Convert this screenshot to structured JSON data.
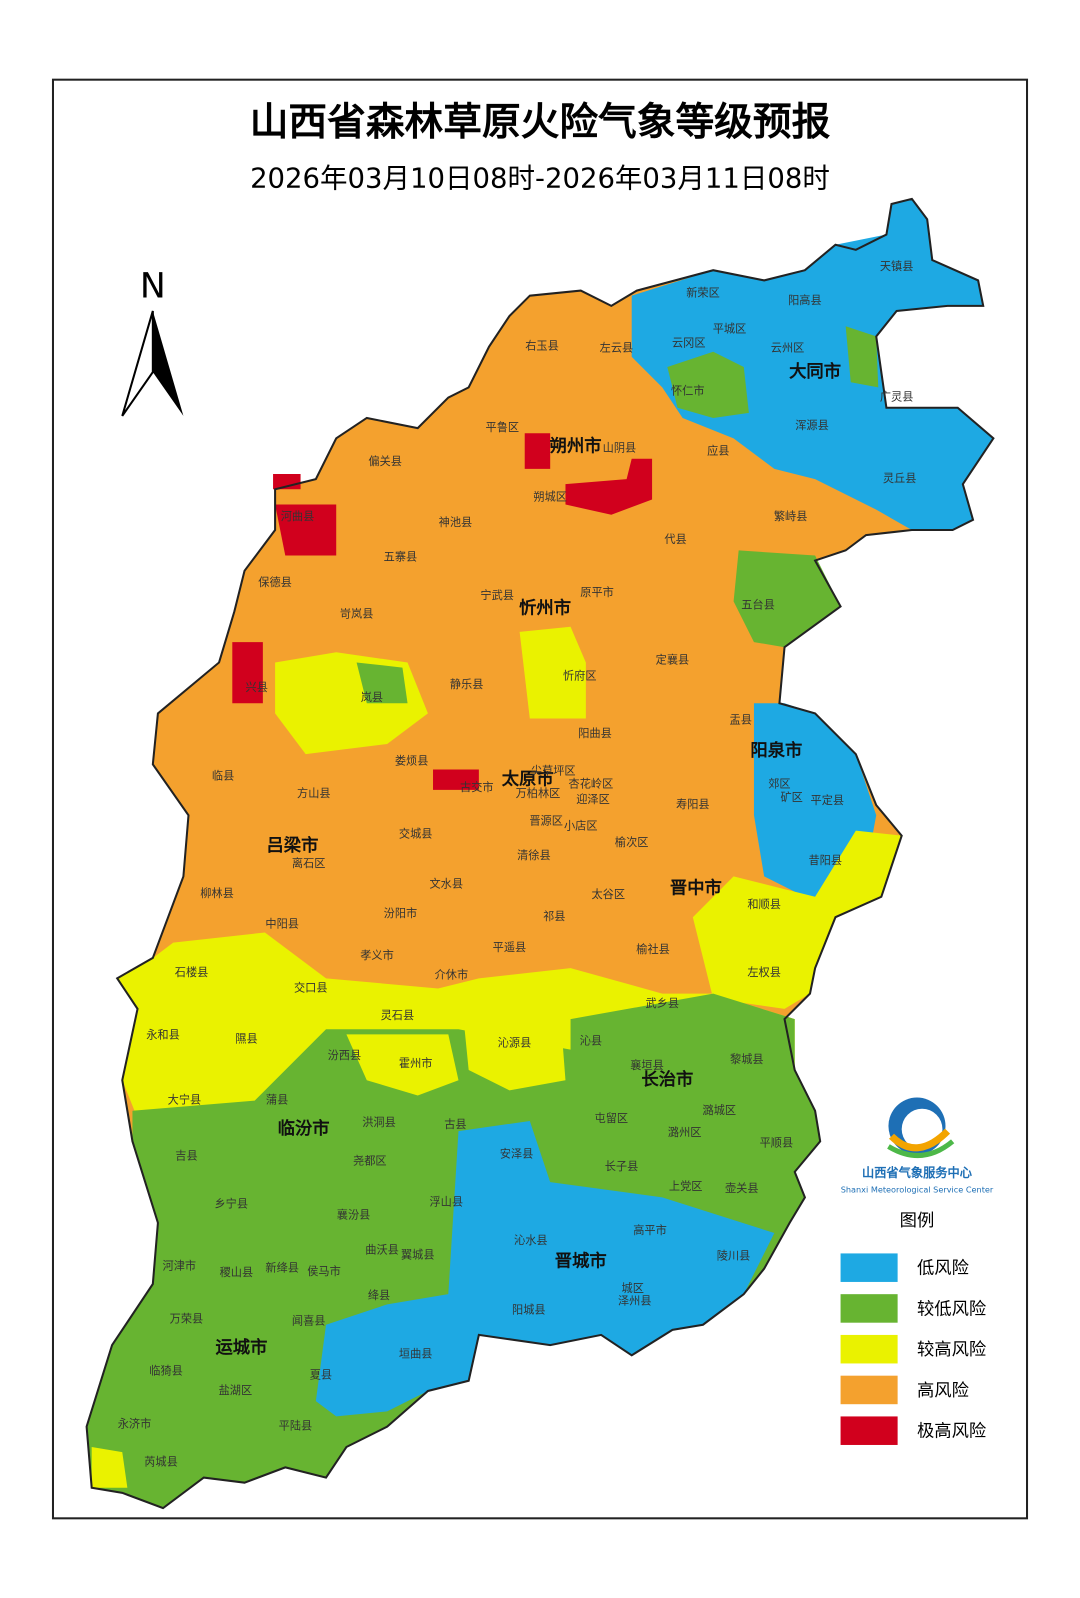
{
  "title": "山西省森林草原火险气象等级预报",
  "subtitle": "2026年03月10日08时-2026年03月11日08时",
  "north": "N",
  "cities": [
    "大同市",
    "朔州市",
    "忻州市",
    "太原市",
    "阳泉市",
    "吕梁市",
    "晋中市",
    "长治市",
    "临汾市",
    "晋城市",
    "运城市"
  ],
  "counties": [
    "天镇县",
    "新荣区",
    "阳高县",
    "平城区",
    "左云县",
    "右玉县",
    "云冈区",
    "云州区",
    "怀仁市",
    "广灵县",
    "浑源县",
    "平鲁区",
    "山阴县",
    "应县",
    "偏关县",
    "灵丘县",
    "河曲县",
    "朔城区",
    "神池县",
    "繁峙县",
    "代县",
    "五寨县",
    "保德县",
    "宁武县",
    "原平市",
    "五台县",
    "岢岚县",
    "静乐县",
    "忻府区",
    "定襄县",
    "兴县",
    "岚县",
    "盂县",
    "阳曲县",
    "娄烦县",
    "尖草坪区",
    "古交市",
    "杏花岭区",
    "万柏林区",
    "迎泽区",
    "郊区",
    "矿区",
    "平定县",
    "晋源区",
    "小店区",
    "临县",
    "方山县",
    "寿阳县",
    "交城县",
    "清徐县",
    "榆次区",
    "离石区",
    "文水县",
    "昔阳县",
    "柳林县",
    "太谷区",
    "和顺县",
    "汾阳市",
    "中阳县",
    "祁县",
    "孝义市",
    "平遥县",
    "榆社县",
    "石楼县",
    "介休市",
    "左权县",
    "交口县",
    "灵石县",
    "武乡县",
    "永和县",
    "隰县",
    "沁源县",
    "沁县",
    "汾西县",
    "黎城县",
    "襄垣县",
    "霍州市",
    "大宁县",
    "蒲县",
    "屯留区",
    "潞城区",
    "古县",
    "洪洞县",
    "潞州区",
    "安泽县",
    "平顺县",
    "吉县",
    "尧都区",
    "长子县",
    "上党区",
    "壶关县",
    "乡宁县",
    "襄汾县",
    "浮山县",
    "高平市",
    "翼城县",
    "曲沃县",
    "沁水县",
    "陵川县",
    "河津市",
    "稷山县",
    "新绛县",
    "侯马市",
    "绛县",
    "阳城县",
    "泽州县",
    "城区",
    "万荣县",
    "闻喜县",
    "垣曲县",
    "临猗县",
    "盐湖区",
    "夏县",
    "永济市",
    "平陆县",
    "芮城县"
  ],
  "legend": {
    "title": "图例",
    "items": [
      {
        "label": "低风险",
        "color": "#1ea9e3"
      },
      {
        "label": "较低风险",
        "color": "#67b431"
      },
      {
        "label": "较高风险",
        "color": "#eaf200"
      },
      {
        "label": "高风险",
        "color": "#f4a12e"
      },
      {
        "label": "极高风险",
        "color": "#d1001d"
      }
    ]
  },
  "logo": {
    "name": "山西省气象服务中心",
    "english": "Shanxi Meteorological Service Center"
  }
}
